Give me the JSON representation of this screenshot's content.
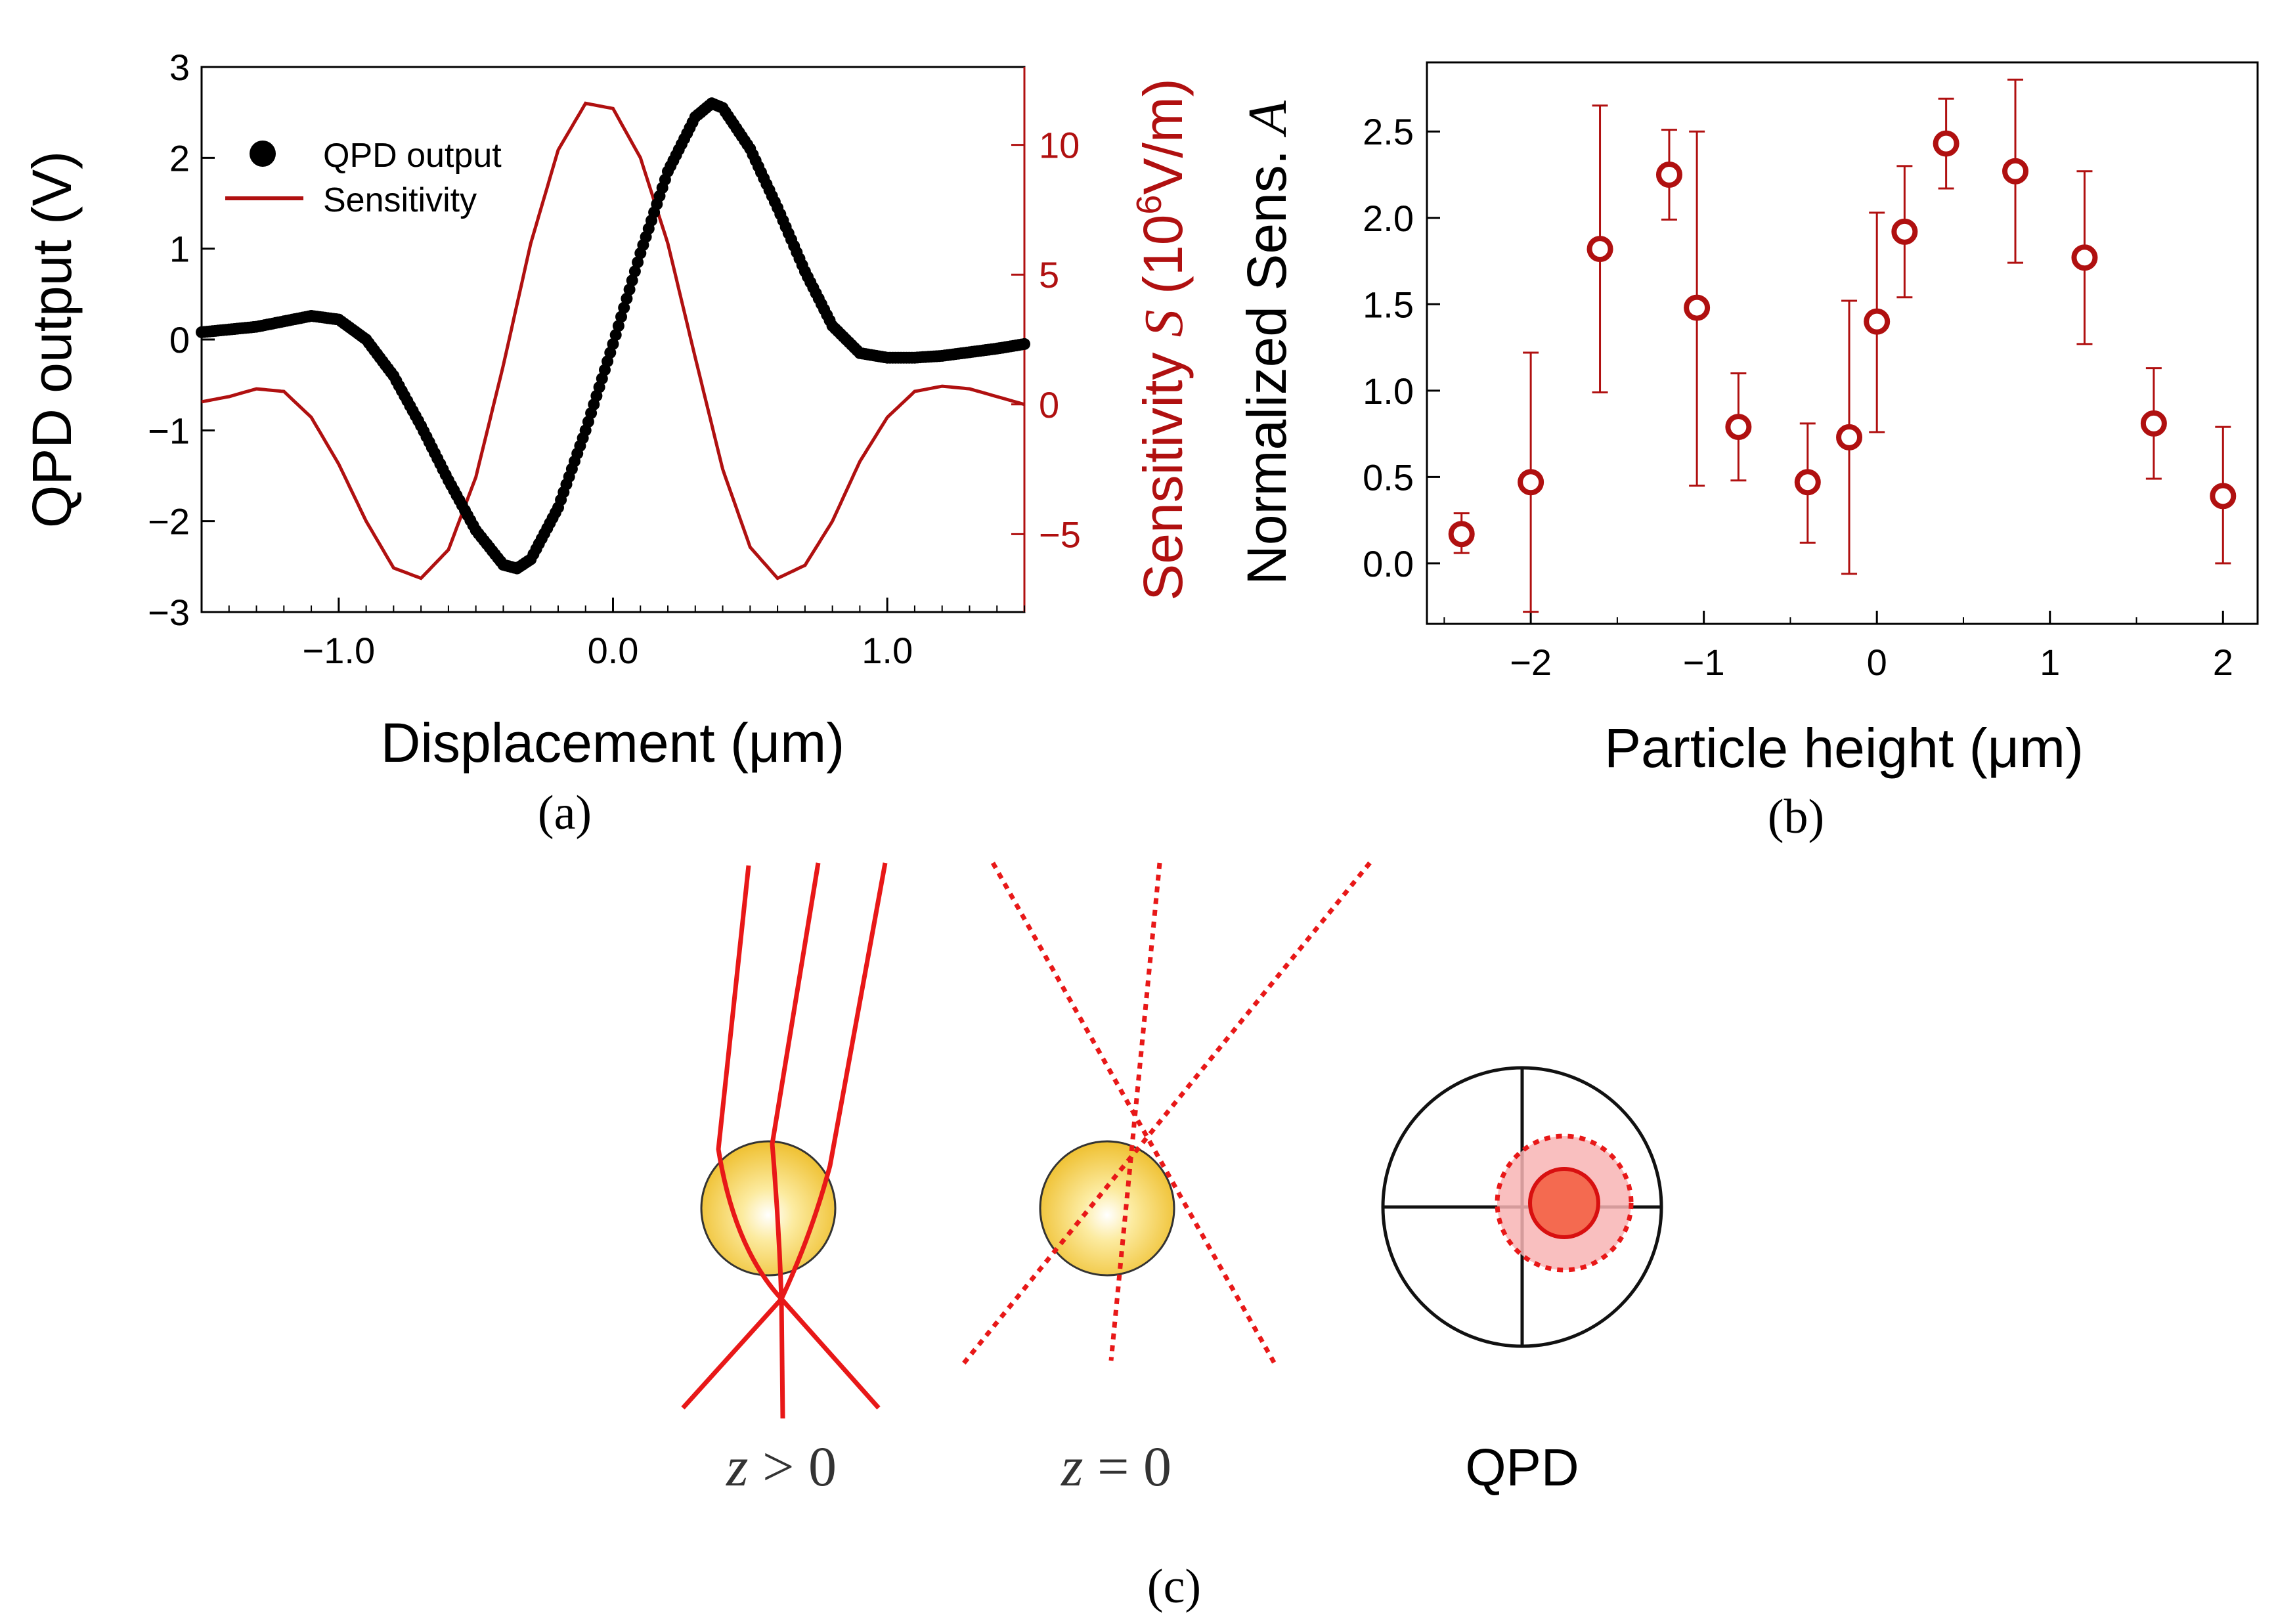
{
  "colors": {
    "red": "#B01010",
    "bright_red": "#E81818",
    "black": "#000000",
    "spot": "#F8B4B4",
    "core": "#F46A50"
  },
  "panel_labels": {
    "a": "(a)",
    "b": "(b)",
    "c": "(c)"
  },
  "chart_data": [
    {
      "type": "line",
      "title": "",
      "xlabel": "Displacement (μm)",
      "ylabel": "QPD output (V)",
      "ylabel2_prefix": "Sensitivity ",
      "ylabel2_var": "S",
      "ylabel2_unit_open": " (10",
      "ylabel2_sup": "6",
      "ylabel2_unit_close": "V/m)",
      "xlim": [
        -1.5,
        1.5
      ],
      "ylim": [
        -3,
        3
      ],
      "ylim2": [
        -8,
        13
      ],
      "x_ticks": [
        {
          "v": -1.0,
          "label": "−1.0"
        },
        {
          "v": 0.0,
          "label": "0.0"
        },
        {
          "v": 1.0,
          "label": "1.0"
        }
      ],
      "y_ticks": [
        {
          "v": -3,
          "label": "−3"
        },
        {
          "v": -2,
          "label": "−2"
        },
        {
          "v": -1,
          "label": "−1"
        },
        {
          "v": 0,
          "label": "0"
        },
        {
          "v": 1,
          "label": "1"
        },
        {
          "v": 2,
          "label": "2"
        },
        {
          "v": 3,
          "label": "3"
        }
      ],
      "y2_ticks": [
        {
          "v": -5,
          "label": "−5"
        },
        {
          "v": 0,
          "label": "0"
        },
        {
          "v": 5,
          "label": "5"
        },
        {
          "v": 10,
          "label": "10"
        }
      ],
      "legend": {
        "position": "top-left",
        "entries": [
          "QPD output",
          "Sensitivity"
        ]
      },
      "series": [
        {
          "name": "QPD output",
          "marker": "dot",
          "x": [
            -1.5,
            -1.3,
            -1.1,
            -1.0,
            -0.9,
            -0.8,
            -0.7,
            -0.6,
            -0.5,
            -0.4,
            -0.35,
            -0.3,
            -0.2,
            -0.1,
            0.0,
            0.1,
            0.2,
            0.3,
            0.36,
            0.4,
            0.5,
            0.6,
            0.7,
            0.8,
            0.9,
            1.0,
            1.1,
            1.2,
            1.3,
            1.4,
            1.5
          ],
          "values": [
            0.08,
            0.14,
            0.26,
            0.22,
            0.0,
            -0.4,
            -0.95,
            -1.55,
            -2.1,
            -2.48,
            -2.52,
            -2.42,
            -1.85,
            -1.0,
            -0.05,
            0.95,
            1.85,
            2.45,
            2.6,
            2.55,
            2.1,
            1.45,
            0.75,
            0.15,
            -0.15,
            -0.2,
            -0.2,
            -0.18,
            -0.14,
            -0.1,
            -0.05
          ]
        },
        {
          "name": "Sensitivity",
          "axis": "right",
          "x": [
            -1.5,
            -1.4,
            -1.3,
            -1.2,
            -1.1,
            -1.0,
            -0.9,
            -0.8,
            -0.7,
            -0.6,
            -0.5,
            -0.4,
            -0.3,
            -0.2,
            -0.1,
            0.0,
            0.1,
            0.2,
            0.3,
            0.4,
            0.5,
            0.6,
            0.7,
            0.8,
            0.9,
            1.0,
            1.1,
            1.2,
            1.3,
            1.4,
            1.5
          ],
          "values": [
            0.1,
            0.3,
            0.6,
            0.5,
            -0.5,
            -2.3,
            -4.5,
            -6.3,
            -6.7,
            -5.6,
            -2.8,
            1.5,
            6.2,
            9.8,
            11.6,
            11.4,
            9.5,
            6.2,
            1.8,
            -2.5,
            -5.5,
            -6.7,
            -6.2,
            -4.5,
            -2.2,
            -0.5,
            0.5,
            0.7,
            0.6,
            0.3,
            0.0
          ]
        }
      ]
    },
    {
      "type": "scatter",
      "title": "",
      "xlabel": "Particle height (μm)",
      "ylabel_prefix": "Normalized Sens. ",
      "ylabel_var": "A",
      "xlim": [
        -2.6,
        2.2
      ],
      "ylim": [
        -0.35,
        2.9
      ],
      "x_ticks": [
        {
          "v": -2,
          "label": "−2"
        },
        {
          "v": -1,
          "label": "−1"
        },
        {
          "v": 0,
          "label": "0"
        },
        {
          "v": 1,
          "label": "1"
        },
        {
          "v": 2,
          "label": "2"
        }
      ],
      "y_ticks": [
        {
          "v": 0.0,
          "label": "0.0"
        },
        {
          "v": 0.5,
          "label": "0.5"
        },
        {
          "v": 1.0,
          "label": "1.0"
        },
        {
          "v": 1.5,
          "label": "1.5"
        },
        {
          "v": 2.0,
          "label": "2.0"
        },
        {
          "v": 2.5,
          "label": "2.5"
        }
      ],
      "points": [
        {
          "x": -2.4,
          "y": 0.17,
          "lo": 0.06,
          "hi": 0.29
        },
        {
          "x": -2.0,
          "y": 0.47,
          "lo": -0.28,
          "hi": 1.22
        },
        {
          "x": -1.6,
          "y": 1.82,
          "lo": 0.99,
          "hi": 2.65
        },
        {
          "x": -1.2,
          "y": 2.25,
          "lo": 1.99,
          "hi": 2.51
        },
        {
          "x": -1.04,
          "y": 1.48,
          "lo": 0.45,
          "hi": 2.5
        },
        {
          "x": -0.8,
          "y": 0.79,
          "lo": 0.48,
          "hi": 1.1
        },
        {
          "x": -0.4,
          "y": 0.47,
          "lo": 0.12,
          "hi": 0.81
        },
        {
          "x": -0.16,
          "y": 0.73,
          "lo": -0.06,
          "hi": 1.52
        },
        {
          "x": 0.0,
          "y": 1.4,
          "lo": 0.76,
          "hi": 2.03
        },
        {
          "x": 0.16,
          "y": 1.92,
          "lo": 1.54,
          "hi": 2.3
        },
        {
          "x": 0.4,
          "y": 2.43,
          "lo": 2.17,
          "hi": 2.69
        },
        {
          "x": 0.8,
          "y": 2.27,
          "lo": 1.74,
          "hi": 2.8
        },
        {
          "x": 1.2,
          "y": 1.77,
          "lo": 1.27,
          "hi": 2.27
        },
        {
          "x": 1.6,
          "y": 0.81,
          "lo": 0.49,
          "hi": 1.13
        },
        {
          "x": 2.0,
          "y": 0.39,
          "lo": 0.0,
          "hi": 0.79
        }
      ]
    }
  ],
  "diagram": {
    "label_gt_var": "z",
    "label_gt_rest": " > 0",
    "label_eq_var": "z",
    "label_eq_rest": " = 0",
    "label_qpd": "QPD"
  }
}
